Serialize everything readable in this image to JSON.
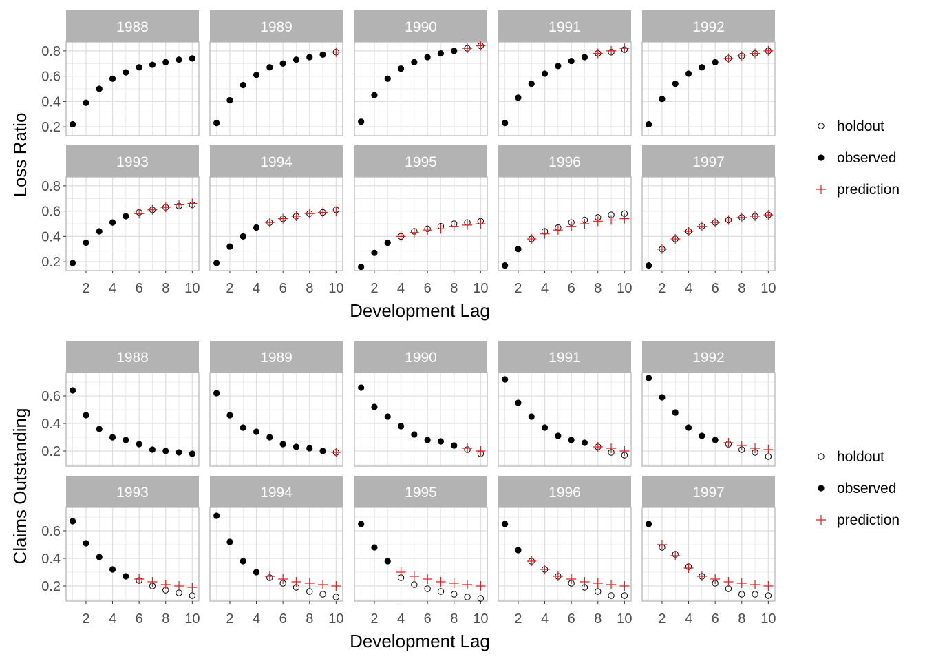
{
  "colors": {
    "strip_bg": "#b3b3b3",
    "strip_text": "#ffffff",
    "panel_border": "#b8b8b8",
    "grid": "#dedede",
    "observed": "#000000",
    "holdout": "#000000",
    "prediction": "#e41a1c",
    "tick_text": "#4d4d4d"
  },
  "chart_data": [
    {
      "type": "scatter",
      "facets": [
        "1988",
        "1989",
        "1990",
        "1991",
        "1992",
        "1993",
        "1994",
        "1995",
        "1996",
        "1997"
      ],
      "xlabel": "Development Lag",
      "ylabel": "Loss Ratio",
      "xlim": [
        0.5,
        10.5
      ],
      "ylim": [
        0.13,
        0.87
      ],
      "x_ticks": [
        2,
        4,
        6,
        8,
        10
      ],
      "y_ticks": [
        0.2,
        0.4,
        0.6,
        0.8
      ],
      "y_tick_labels": [
        "0.2",
        "0.4",
        "0.6",
        "0.8"
      ],
      "grid": true,
      "legend": {
        "position": "right",
        "entries": [
          "holdout",
          "observed",
          "prediction"
        ]
      },
      "x": [
        1,
        2,
        3,
        4,
        5,
        6,
        7,
        8,
        9,
        10
      ],
      "series": {
        "observed": [
          [
            0.22,
            0.39,
            0.5,
            0.58,
            0.63,
            0.67,
            0.69,
            0.71,
            0.73,
            0.74
          ],
          [
            0.23,
            0.41,
            0.53,
            0.61,
            0.67,
            0.7,
            0.73,
            0.75,
            0.77,
            null
          ],
          [
            0.24,
            0.45,
            0.58,
            0.66,
            0.71,
            0.75,
            0.78,
            0.8,
            null,
            null
          ],
          [
            0.23,
            0.43,
            0.54,
            0.62,
            0.68,
            0.72,
            0.75,
            null,
            null,
            null
          ],
          [
            0.22,
            0.42,
            0.54,
            0.62,
            0.67,
            0.71,
            null,
            null,
            null,
            null
          ],
          [
            0.19,
            0.35,
            0.44,
            0.51,
            0.56,
            null,
            null,
            null,
            null,
            null
          ],
          [
            0.19,
            0.32,
            0.4,
            0.47,
            null,
            null,
            null,
            null,
            null,
            null
          ],
          [
            0.16,
            0.27,
            0.35,
            null,
            null,
            null,
            null,
            null,
            null,
            null
          ],
          [
            0.17,
            0.3,
            null,
            null,
            null,
            null,
            null,
            null,
            null,
            null
          ],
          [
            0.17,
            null,
            null,
            null,
            null,
            null,
            null,
            null,
            null,
            null
          ]
        ],
        "holdout": [
          [
            null,
            null,
            null,
            null,
            null,
            null,
            null,
            null,
            null,
            null
          ],
          [
            null,
            null,
            null,
            null,
            null,
            null,
            null,
            null,
            null,
            0.79
          ],
          [
            null,
            null,
            null,
            null,
            null,
            null,
            null,
            null,
            0.82,
            0.84
          ],
          [
            null,
            null,
            null,
            null,
            null,
            null,
            null,
            0.78,
            0.79,
            0.81
          ],
          [
            null,
            null,
            null,
            null,
            null,
            null,
            0.74,
            0.76,
            0.78,
            0.8
          ],
          [
            null,
            null,
            null,
            null,
            null,
            0.59,
            0.61,
            0.63,
            0.64,
            0.65
          ],
          [
            null,
            null,
            null,
            null,
            0.51,
            0.54,
            0.56,
            0.58,
            0.59,
            0.61
          ],
          [
            null,
            null,
            null,
            0.4,
            0.44,
            0.46,
            0.48,
            0.5,
            0.51,
            0.52
          ],
          [
            null,
            null,
            0.38,
            0.44,
            0.47,
            0.51,
            0.53,
            0.55,
            0.57,
            0.58
          ],
          [
            null,
            0.3,
            0.38,
            0.44,
            0.48,
            0.51,
            0.53,
            0.55,
            0.56,
            0.57
          ]
        ],
        "prediction": [
          [
            null,
            null,
            null,
            null,
            null,
            null,
            null,
            null,
            null,
            null
          ],
          [
            null,
            null,
            null,
            null,
            null,
            null,
            null,
            null,
            null,
            0.79
          ],
          [
            null,
            null,
            null,
            null,
            null,
            null,
            null,
            null,
            0.82,
            0.84
          ],
          [
            null,
            null,
            null,
            null,
            null,
            null,
            null,
            0.78,
            0.8,
            0.82
          ],
          [
            null,
            null,
            null,
            null,
            null,
            null,
            0.74,
            0.76,
            0.78,
            0.8
          ],
          [
            null,
            null,
            null,
            null,
            null,
            0.58,
            0.61,
            0.63,
            0.65,
            0.66
          ],
          [
            null,
            null,
            null,
            null,
            0.51,
            0.54,
            0.56,
            0.58,
            0.59,
            0.6
          ],
          [
            null,
            null,
            null,
            0.4,
            0.43,
            0.45,
            0.46,
            0.48,
            0.49,
            0.5
          ],
          [
            null,
            null,
            0.38,
            0.42,
            0.45,
            0.48,
            0.5,
            0.52,
            0.53,
            0.54
          ],
          [
            null,
            0.3,
            0.38,
            0.44,
            0.48,
            0.51,
            0.53,
            0.55,
            0.56,
            0.57
          ]
        ]
      }
    },
    {
      "type": "scatter",
      "facets": [
        "1988",
        "1989",
        "1990",
        "1991",
        "1992",
        "1993",
        "1994",
        "1995",
        "1996",
        "1997"
      ],
      "xlabel": "Development Lag",
      "ylabel": "Claims Outstanding",
      "xlim": [
        0.5,
        10.5
      ],
      "ylim": [
        0.09,
        0.77
      ],
      "x_ticks": [
        2,
        4,
        6,
        8,
        10
      ],
      "y_ticks": [
        0.2,
        0.4,
        0.6
      ],
      "y_tick_labels": [
        "0.2",
        "0.4",
        "0.6"
      ],
      "grid": true,
      "legend": {
        "position": "right",
        "entries": [
          "holdout",
          "observed",
          "prediction"
        ]
      },
      "x": [
        1,
        2,
        3,
        4,
        5,
        6,
        7,
        8,
        9,
        10
      ],
      "series": {
        "observed": [
          [
            0.64,
            0.46,
            0.36,
            0.3,
            0.28,
            0.25,
            0.21,
            0.2,
            0.19,
            0.18
          ],
          [
            0.62,
            0.46,
            0.37,
            0.34,
            0.3,
            0.25,
            0.23,
            0.22,
            0.2,
            null
          ],
          [
            0.66,
            0.52,
            0.45,
            0.38,
            0.32,
            0.28,
            0.27,
            0.24,
            null,
            null
          ],
          [
            0.72,
            0.55,
            0.45,
            0.37,
            0.31,
            0.28,
            0.26,
            null,
            null,
            null
          ],
          [
            0.73,
            0.59,
            0.48,
            0.37,
            0.31,
            0.28,
            null,
            null,
            null,
            null
          ],
          [
            0.67,
            0.51,
            0.41,
            0.32,
            0.27,
            null,
            null,
            null,
            null,
            null
          ],
          [
            0.71,
            0.52,
            0.38,
            0.3,
            null,
            null,
            null,
            null,
            null,
            null
          ],
          [
            0.65,
            0.48,
            0.38,
            null,
            null,
            null,
            null,
            null,
            null,
            null
          ],
          [
            0.65,
            0.46,
            null,
            null,
            null,
            null,
            null,
            null,
            null,
            null
          ],
          [
            0.65,
            null,
            null,
            null,
            null,
            null,
            null,
            null,
            null,
            null
          ]
        ],
        "holdout": [
          [
            null,
            null,
            null,
            null,
            null,
            null,
            null,
            null,
            null,
            null
          ],
          [
            null,
            null,
            null,
            null,
            null,
            null,
            null,
            null,
            null,
            0.19
          ],
          [
            null,
            null,
            null,
            null,
            null,
            null,
            null,
            null,
            0.21,
            0.18
          ],
          [
            null,
            null,
            null,
            null,
            null,
            null,
            null,
            0.23,
            0.19,
            0.17
          ],
          [
            null,
            null,
            null,
            null,
            null,
            null,
            0.25,
            0.21,
            0.19,
            0.16
          ],
          [
            null,
            null,
            null,
            null,
            null,
            0.24,
            0.2,
            0.17,
            0.15,
            0.13
          ],
          [
            null,
            null,
            null,
            null,
            0.26,
            0.22,
            0.19,
            0.16,
            0.14,
            0.12
          ],
          [
            null,
            null,
            null,
            0.26,
            0.21,
            0.18,
            0.16,
            0.14,
            0.12,
            0.11
          ],
          [
            null,
            null,
            0.38,
            0.32,
            0.27,
            0.22,
            0.19,
            0.16,
            0.13,
            0.13
          ],
          [
            null,
            0.48,
            0.43,
            0.34,
            0.27,
            0.22,
            0.18,
            0.14,
            0.14,
            0.13
          ]
        ],
        "prediction": [
          [
            null,
            null,
            null,
            null,
            null,
            null,
            null,
            null,
            null,
            null
          ],
          [
            null,
            null,
            null,
            null,
            null,
            null,
            null,
            null,
            null,
            0.19
          ],
          [
            null,
            null,
            null,
            null,
            null,
            null,
            null,
            null,
            0.22,
            0.2
          ],
          [
            null,
            null,
            null,
            null,
            null,
            null,
            null,
            0.23,
            0.22,
            0.2
          ],
          [
            null,
            null,
            null,
            null,
            null,
            null,
            0.26,
            0.24,
            0.22,
            0.21
          ],
          [
            null,
            null,
            null,
            null,
            null,
            0.25,
            0.23,
            0.21,
            0.2,
            0.19
          ],
          [
            null,
            null,
            null,
            null,
            0.27,
            0.25,
            0.23,
            0.22,
            0.21,
            0.2
          ],
          [
            null,
            null,
            null,
            0.3,
            0.27,
            0.25,
            0.23,
            0.22,
            0.21,
            0.2
          ],
          [
            null,
            null,
            0.38,
            0.32,
            0.27,
            0.25,
            0.23,
            0.22,
            0.21,
            0.2
          ],
          [
            null,
            0.5,
            0.42,
            0.33,
            0.27,
            0.25,
            0.23,
            0.22,
            0.21,
            0.2
          ]
        ]
      }
    }
  ]
}
